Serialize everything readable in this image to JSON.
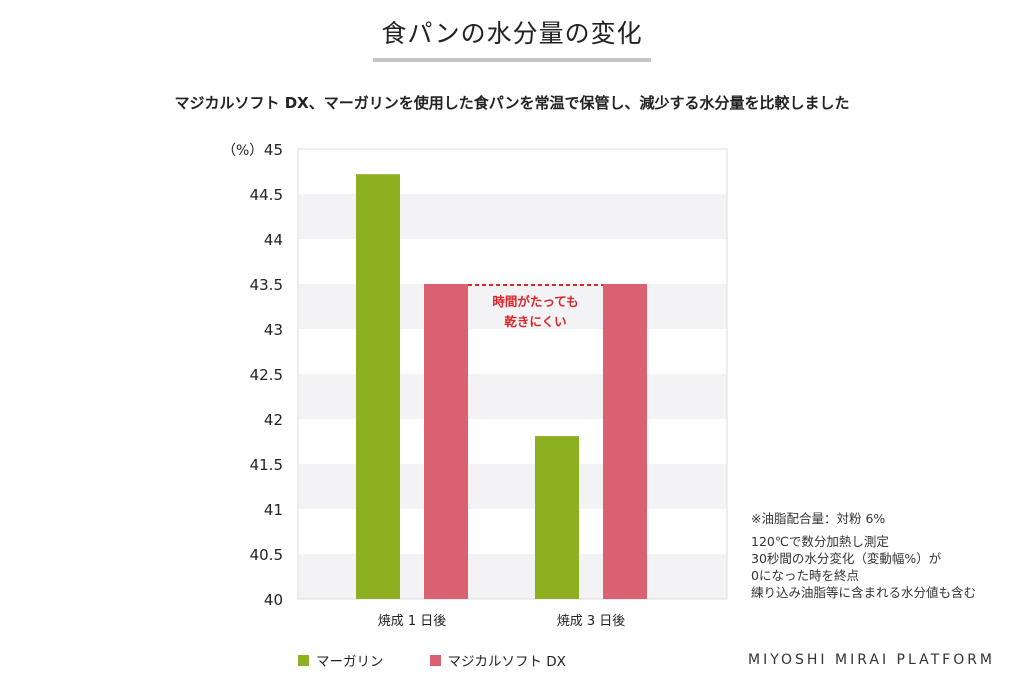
{
  "title": "食パンの水分量の変化",
  "subtitle": "マジカルソフト DX、マーガリンを使用した食パンを常温で保管し、減少する水分量を比較しました",
  "brand": "MIYOSHI MIRAI PLATFORM",
  "notes": {
    "line1": "※油脂配合量：対粉 6%",
    "line2": "120℃で数分加熱し測定",
    "line3": "30秒間の水分変化（変動幅%）が",
    "line4": "0になった時を終点",
    "line5": "練り込み油脂等に含まれる水分値も含む"
  },
  "colors": {
    "margarine": "#8cb01f",
    "dx": "#d96172",
    "annotation": "#d9262b",
    "band": "#f3f3f5"
  },
  "chart_data": {
    "type": "bar",
    "categories": [
      "焼成 1 日後",
      "焼成 3 日後"
    ],
    "series": [
      {
        "name": "マーガリン",
        "values": [
          44.72,
          41.81
        ]
      },
      {
        "name": "マジカルソフト DX",
        "values": [
          43.5,
          43.5
        ]
      }
    ],
    "ylim": [
      40,
      45
    ],
    "yticks": [
      "40",
      "40.5",
      "41",
      "41.5",
      "42",
      "42.5",
      "43",
      "43.5",
      "44",
      "44.5",
      "45"
    ],
    "ylabel": "（%）",
    "grid": "alternating horizontal bands",
    "legend_position": "bottom",
    "annotation": {
      "line1": "時間がたっても",
      "line2": "乾きにくい"
    }
  }
}
